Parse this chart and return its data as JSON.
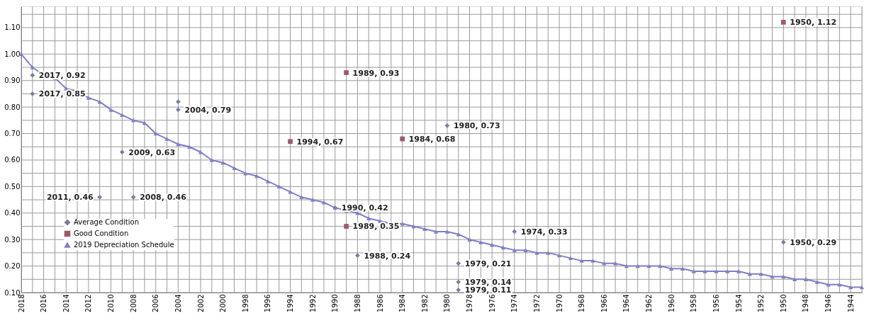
{
  "chart_data": {
    "type": "scatter",
    "xlim": [
      2018,
      1943
    ],
    "xticks": [
      2018,
      {
        "value": 2017,
        "label": null
      },
      2016,
      {
        "value": 2015,
        "label": null
      },
      2014,
      {
        "value": 2013,
        "label": null
      },
      2012,
      {
        "value": 2011,
        "label": null
      },
      2010,
      {
        "value": 2009,
        "label": null
      },
      2008,
      {
        "value": 2007,
        "label": null
      },
      2006,
      {
        "value": 2005,
        "label": null
      },
      2004,
      {
        "value": 2003,
        "label": null
      },
      2002,
      {
        "value": 2001,
        "label": null
      },
      2000,
      {
        "value": 1999,
        "label": null
      },
      1998,
      {
        "value": 1997,
        "label": null
      },
      1996,
      {
        "value": 1995,
        "label": null
      },
      1994,
      {
        "value": 1993,
        "label": null
      },
      1992,
      {
        "value": 1991,
        "label": null
      },
      1990,
      {
        "value": 1989,
        "label": null
      },
      1988,
      {
        "value": 1987,
        "label": null
      },
      1986,
      {
        "value": 1985,
        "label": null
      },
      1984,
      {
        "value": 1983,
        "label": null
      },
      1982,
      {
        "value": 1981,
        "label": null
      },
      1980,
      {
        "value": 1979,
        "label": null
      },
      1978,
      {
        "value": 1977,
        "label": null
      },
      1976,
      {
        "value": 1975,
        "label": null
      },
      1974,
      {
        "value": 1973,
        "label": null
      },
      1972,
      {
        "value": 1971,
        "label": null
      },
      1970,
      {
        "value": 1969,
        "label": null
      },
      1968,
      {
        "value": 1967,
        "label": null
      },
      1966,
      {
        "value": 1965,
        "label": null
      },
      1964,
      {
        "value": 1963,
        "label": null
      },
      1962,
      {
        "value": 1961,
        "label": null
      },
      1960,
      {
        "value": 1959,
        "label": null
      },
      1958,
      {
        "value": 1957,
        "label": null
      },
      1956,
      {
        "value": 1955,
        "label": null
      },
      1954,
      {
        "value": 1953,
        "label": null
      },
      1952,
      {
        "value": 1951,
        "label": null
      },
      1950,
      {
        "value": 1949,
        "label": null
      },
      1948,
      {
        "value": 1947,
        "label": null
      },
      1946,
      {
        "value": 1945,
        "label": null
      },
      1944,
      {
        "value": 1943,
        "label": null
      }
    ],
    "ylim": [
      0.1,
      1.18
    ],
    "yticks": [
      {
        "value": 0.1,
        "label": "0.10"
      },
      {
        "value": 0.15,
        "label": null
      },
      {
        "value": 0.2,
        "label": "0.20"
      },
      {
        "value": 0.25,
        "label": null
      },
      {
        "value": 0.3,
        "label": "0.30"
      },
      {
        "value": 0.35,
        "label": null
      },
      {
        "value": 0.4,
        "label": "0.40"
      },
      {
        "value": 0.45,
        "label": null
      },
      {
        "value": 0.5,
        "label": "0.50"
      },
      {
        "value": 0.55,
        "label": null
      },
      {
        "value": 0.6,
        "label": "0.60"
      },
      {
        "value": 0.65,
        "label": null
      },
      {
        "value": 0.7,
        "label": "0.70"
      },
      {
        "value": 0.75,
        "label": null
      },
      {
        "value": 0.8,
        "label": "0.80"
      },
      {
        "value": 0.85,
        "label": null
      },
      {
        "value": 0.9,
        "label": "0.90"
      },
      {
        "value": 0.95,
        "label": null
      },
      {
        "value": 1.0,
        "label": "1.00"
      },
      {
        "value": 1.05,
        "label": null
      },
      {
        "value": 1.1,
        "label": "1.10"
      },
      {
        "value": 1.15,
        "label": null
      }
    ],
    "grid": true,
    "legend": "bottom left",
    "series": [
      {
        "name": "Average Condition",
        "type": "scatter",
        "marker": "diamond",
        "color": "#7a7d9c",
        "x": [
          2017,
          2017,
          2004,
          2004,
          2009,
          2011,
          2008,
          1990,
          1988,
          1980,
          1974,
          1979,
          1979,
          1979,
          1950
        ],
        "values": [
          0.92,
          0.85,
          0.82,
          0.79,
          0.63,
          0.46,
          0.46,
          0.42,
          0.24,
          0.73,
          0.33,
          0.21,
          0.14,
          0.11,
          0.29
        ],
        "value_labels": [
          "2017, 0.92",
          "2017, 0.85",
          null,
          "2004, 0.79",
          "2009, 0.63",
          "2011, 0.46",
          "2008, 0.46",
          "1990, 0.42",
          "1988, 0.24",
          "1980, 0.73",
          "1974, 0.33",
          "1979, 0.21",
          "1979, 0.14",
          "1979, 0.11",
          "1950, 0.29"
        ]
      },
      {
        "name": "Good Condition",
        "type": "scatter",
        "marker": "square",
        "color": "#9c5a68",
        "x": [
          1989,
          1994,
          1984,
          1989,
          1950
        ],
        "values": [
          0.93,
          0.67,
          0.68,
          0.35,
          1.12
        ],
        "value_labels": [
          "1989, 0.93",
          "1994, 0.67",
          "1984, 0.68",
          "1989, 0.35",
          "1950, 1.12"
        ]
      },
      {
        "name": "2019 Depreciation Schedule",
        "type": "line",
        "marker": "triangle",
        "color": "#7f7fc4",
        "x": [
          2018,
          2017,
          2016,
          2015,
          2014,
          2013,
          2012,
          2011,
          2010,
          2009,
          2008,
          2007,
          2006,
          2005,
          2004,
          2003,
          2002,
          2001,
          2000,
          1999,
          1998,
          1997,
          1996,
          1995,
          1994,
          1993,
          1992,
          1991,
          1990,
          1989,
          1988,
          1987,
          1986,
          1985,
          1984,
          1983,
          1982,
          1981,
          1980,
          1979,
          1978,
          1977,
          1976,
          1975,
          1974,
          1973,
          1972,
          1971,
          1970,
          1969,
          1968,
          1967,
          1966,
          1965,
          1964,
          1963,
          1962,
          1961,
          1960,
          1959,
          1958,
          1957,
          1956,
          1955,
          1954,
          1953,
          1952,
          1951,
          1950,
          1949,
          1948,
          1947,
          1946,
          1945,
          1944,
          1943
        ],
        "values": [
          1.0,
          0.95,
          0.92,
          0.91,
          0.87,
          0.86,
          0.835,
          0.82,
          0.79,
          0.77,
          0.75,
          0.74,
          0.7,
          0.68,
          0.66,
          0.65,
          0.63,
          0.6,
          0.59,
          0.57,
          0.55,
          0.54,
          0.52,
          0.5,
          0.48,
          0.46,
          0.45,
          0.44,
          0.42,
          0.41,
          0.4,
          0.38,
          0.37,
          0.36,
          0.36,
          0.35,
          0.34,
          0.33,
          0.33,
          0.32,
          0.3,
          0.29,
          0.28,
          0.27,
          0.26,
          0.26,
          0.25,
          0.25,
          0.24,
          0.23,
          0.22,
          0.22,
          0.21,
          0.21,
          0.2,
          0.2,
          0.2,
          0.2,
          0.19,
          0.19,
          0.18,
          0.18,
          0.18,
          0.18,
          0.18,
          0.17,
          0.17,
          0.16,
          0.16,
          0.15,
          0.15,
          0.14,
          0.13,
          0.13,
          0.12,
          0.12
        ]
      }
    ]
  }
}
